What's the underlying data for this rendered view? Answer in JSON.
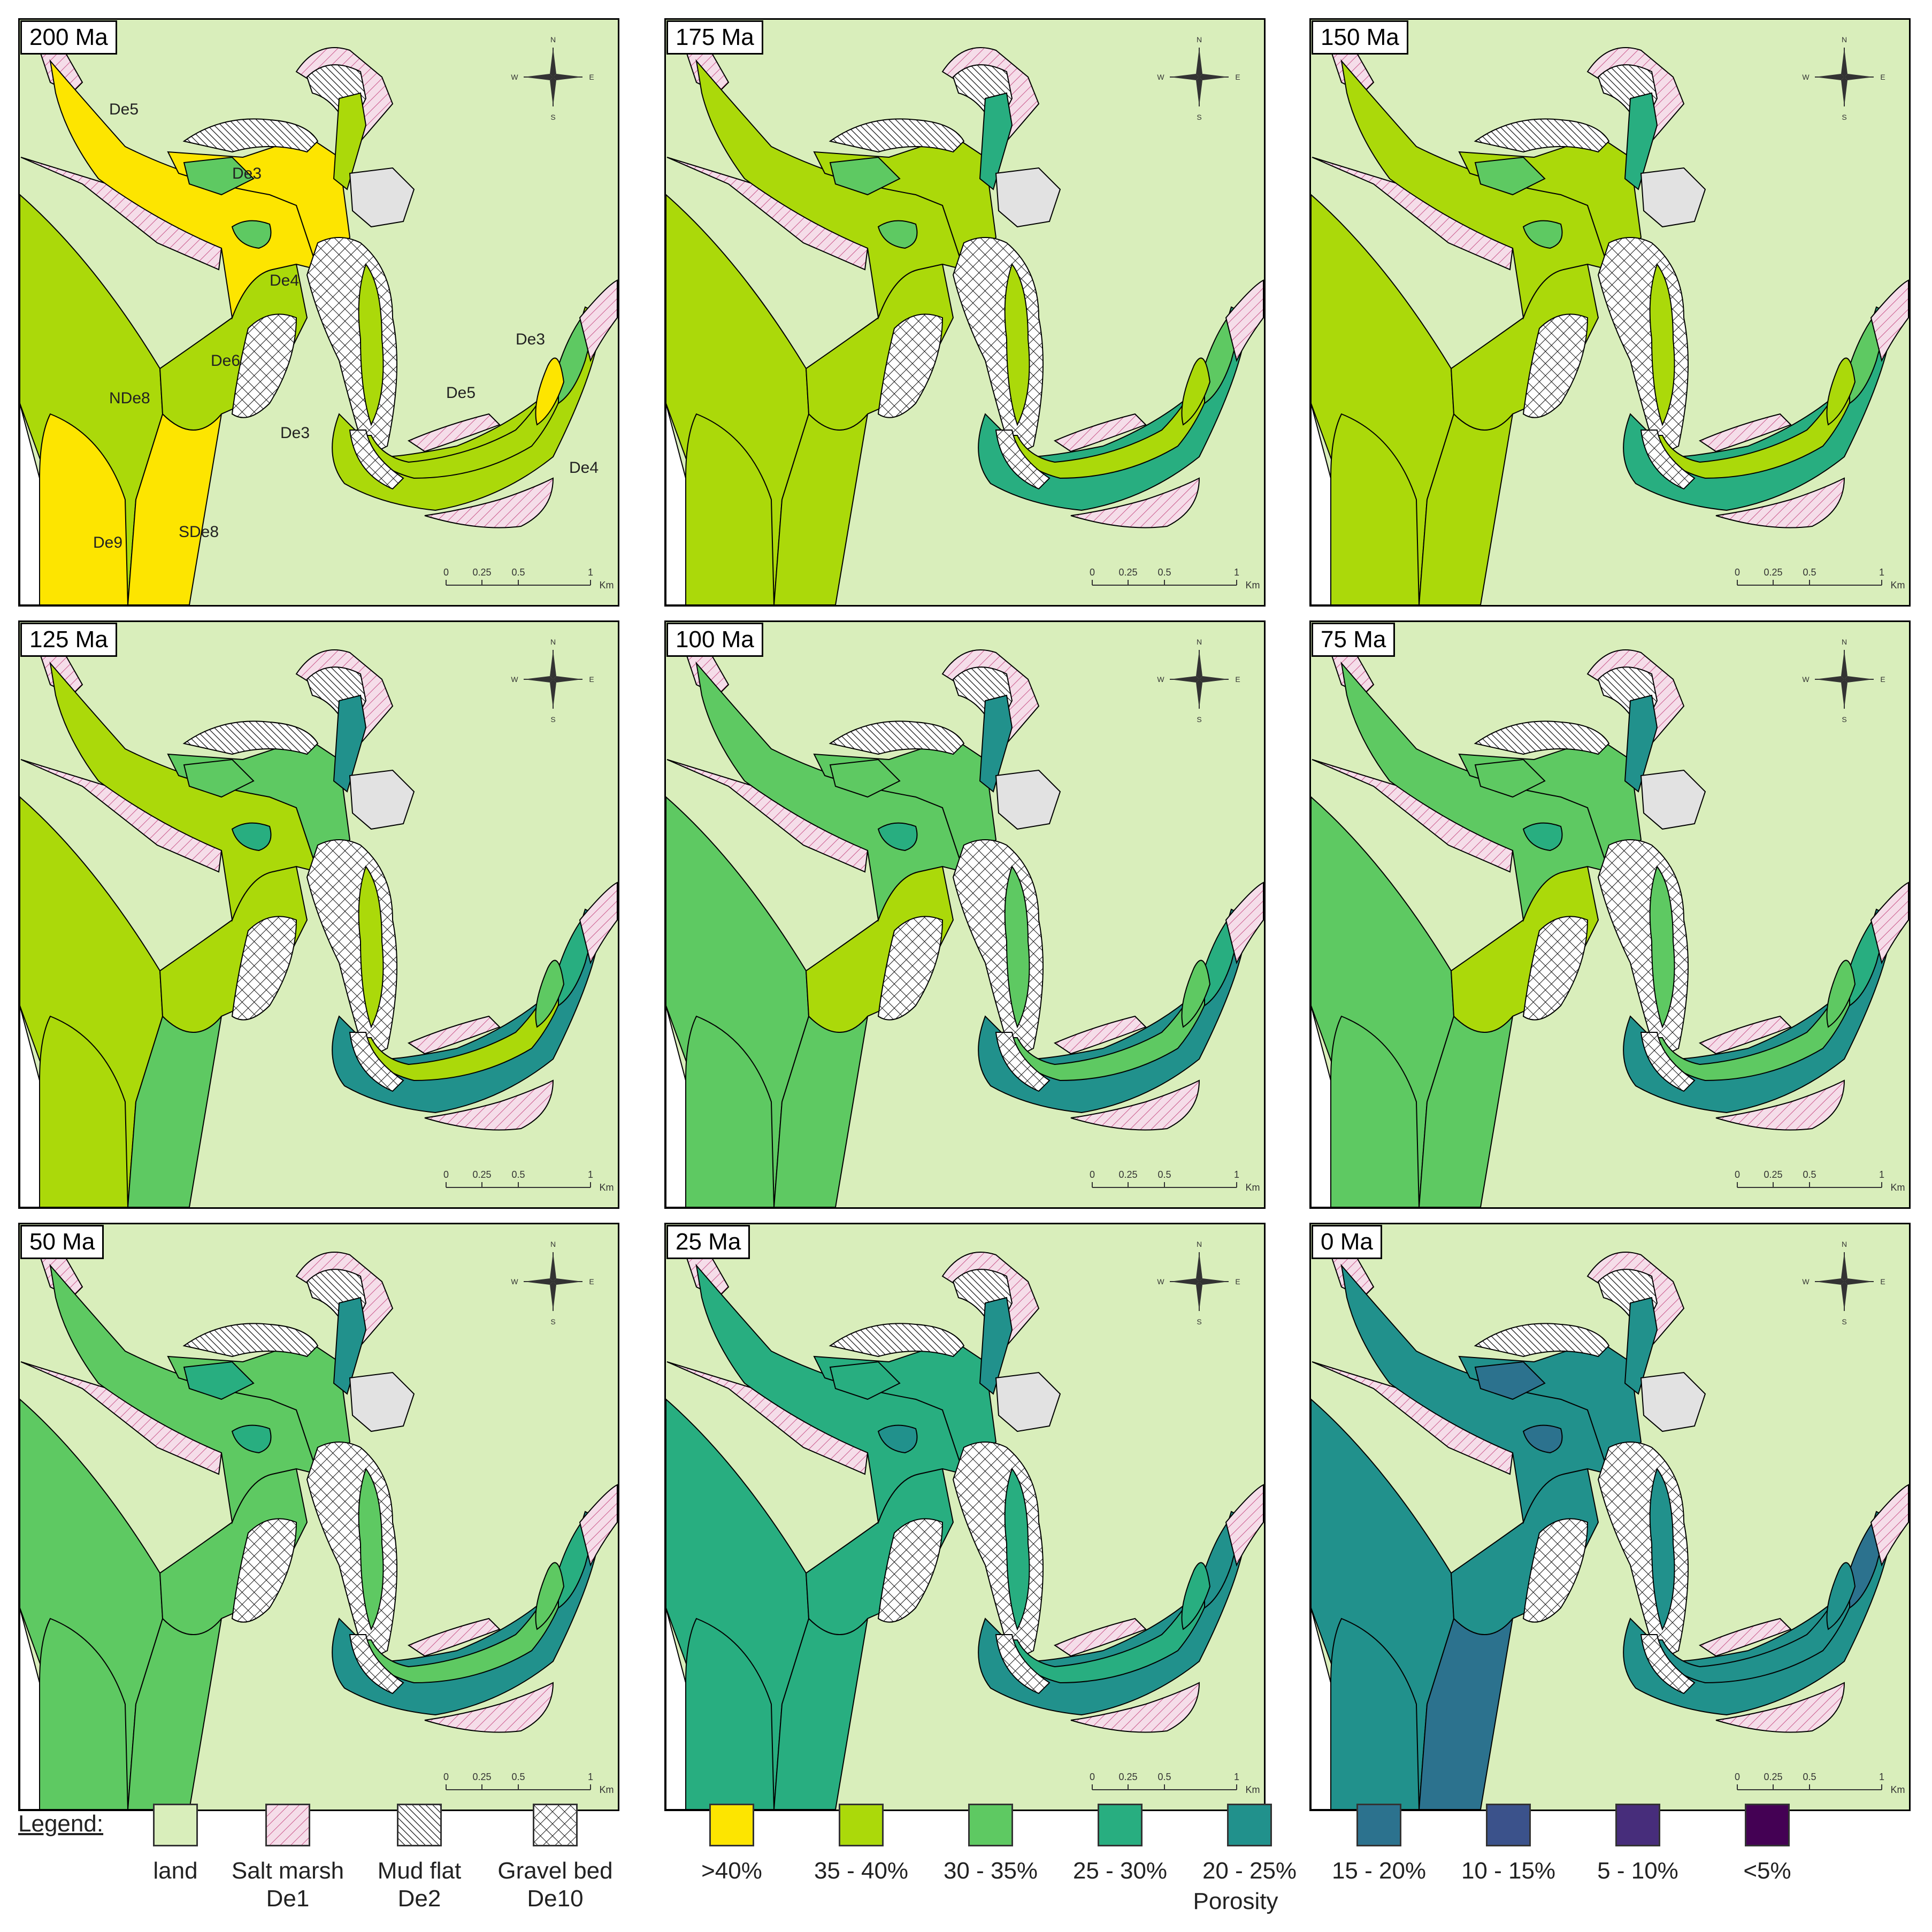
{
  "panels": [
    {
      "age": "200 Ma",
      "colors": {
        "a": "#fde500",
        "b": "#abd90a",
        "c": "#abd90a",
        "d": "#fde500",
        "e": "#abd90a",
        "f": "#abd90a",
        "g": "#fde500",
        "h": "#fde500",
        "i": "#5ec962",
        "k": "#5ec962",
        "ch": "#abd90a"
      }
    },
    {
      "age": "175 Ma",
      "colors": {
        "a": "#abd90a",
        "b": "#abd90a",
        "c": "#abd90a",
        "d": "#abd90a",
        "e": "#abd90a",
        "f": "#abd90a",
        "g": "#abd90a",
        "h": "#abd90a",
        "i": "#5ec962",
        "k": "#5ec962",
        "ch": "#28ae80"
      }
    },
    {
      "age": "150 Ma",
      "colors": {
        "a": "#abd90a",
        "b": "#abd90a",
        "c": "#abd90a",
        "d": "#abd90a",
        "e": "#abd90a",
        "f": "#abd90a",
        "g": "#abd90a",
        "h": "#abd90a",
        "i": "#5ec962",
        "k": "#5ec962",
        "ch": "#28ae80"
      }
    },
    {
      "age": "125 Ma",
      "colors": {
        "a": "#abd90a",
        "b": "#abd90a",
        "c": "#abd90a",
        "d": "#5ec962",
        "e": "#abd90a",
        "f": "#abd90a",
        "g": "#abd90a",
        "h": "#5ec962",
        "i": "#28ae80",
        "k": "#5ec962",
        "ch": "#21918c"
      }
    },
    {
      "age": "100 Ma",
      "colors": {
        "a": "#5ec962",
        "b": "#5ec962",
        "c": "#5ec962",
        "d": "#5ec962",
        "e": "#abd90a",
        "f": "#5ec962",
        "g": "#5ec962",
        "h": "#5ec962",
        "i": "#28ae80",
        "k": "#5ec962",
        "ch": "#21918c"
      }
    },
    {
      "age": "75 Ma",
      "colors": {
        "a": "#5ec962",
        "b": "#5ec962",
        "c": "#5ec962",
        "d": "#5ec962",
        "e": "#abd90a",
        "f": "#5ec962",
        "g": "#5ec962",
        "h": "#5ec962",
        "i": "#28ae80",
        "k": "#5ec962",
        "ch": "#21918c"
      }
    },
    {
      "age": "50 Ma",
      "colors": {
        "a": "#5ec962",
        "b": "#5ec962",
        "c": "#5ec962",
        "d": "#5ec962",
        "e": "#5ec962",
        "f": "#5ec962",
        "g": "#5ec962",
        "h": "#5ec962",
        "i": "#28ae80",
        "k": "#28ae80",
        "ch": "#21918c"
      }
    },
    {
      "age": "25 Ma",
      "colors": {
        "a": "#28ae80",
        "b": "#28ae80",
        "c": "#28ae80",
        "d": "#28ae80",
        "e": "#28ae80",
        "f": "#28ae80",
        "g": "#28ae80",
        "h": "#28ae80",
        "i": "#21918c",
        "k": "#28ae80",
        "ch": "#21918c"
      }
    },
    {
      "age": "0 Ma",
      "colors": {
        "a": "#21918c",
        "b": "#21918c",
        "c": "#21918c",
        "d": "#21918c",
        "e": "#21918c",
        "f": "#21918c",
        "g": "#21918c",
        "h": "#2c728e",
        "i": "#2c728e",
        "k": "#2c728e",
        "ch": "#21918c"
      }
    }
  ],
  "first_panel_labels": [
    "De5",
    "De3",
    "De4",
    "NDe8",
    "De6",
    "De9",
    "SDe8",
    "De3",
    "De5",
    "De3",
    "De4"
  ],
  "scale_bar": {
    "ticks": [
      "0",
      "0.25",
      "0.5",
      "1"
    ],
    "unit": "Km"
  },
  "compass": {
    "n": "N",
    "s": "S",
    "e": "E",
    "w": "W"
  },
  "legend": {
    "title": "Legend:",
    "facies": [
      {
        "label": "land",
        "sub": "",
        "fill": "#d9eebb",
        "pattern": "none"
      },
      {
        "label": "Salt marsh",
        "sub": "De1",
        "fill": "#f5dde9",
        "pattern": "diag-pink"
      },
      {
        "label": "Mud flat",
        "sub": "De2",
        "fill": "#ffffff",
        "pattern": "diag-black"
      },
      {
        "label": "Gravel bed",
        "sub": "De10",
        "fill": "#ffffff",
        "pattern": "cross"
      }
    ],
    "porosity": [
      {
        "label": ">40%",
        "color": "#fde500"
      },
      {
        "label": "35 - 40%",
        "color": "#abd90a"
      },
      {
        "label": "30 - 35%",
        "color": "#5ec962"
      },
      {
        "label": "25 - 30%",
        "color": "#28ae80"
      },
      {
        "label": "20 - 25%",
        "color": "#21918c"
      },
      {
        "label": "15 - 20%",
        "color": "#2c728e"
      },
      {
        "label": "10 - 15%",
        "color": "#3b528b"
      },
      {
        "label": "5 - 10%",
        "color": "#472d7b"
      },
      {
        "label": "<5%",
        "color": "#440154"
      }
    ],
    "porosity_title": "Porosity"
  }
}
